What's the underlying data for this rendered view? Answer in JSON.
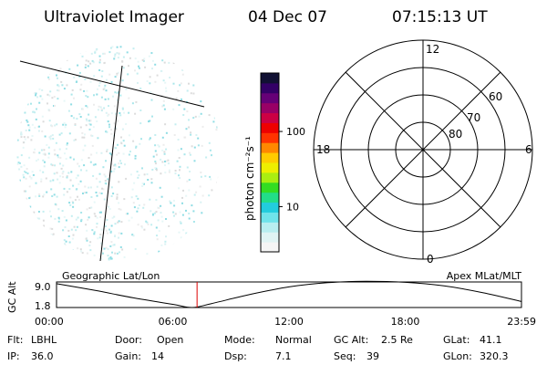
{
  "header": {
    "instrument": "Ultraviolet Imager",
    "date": "04 Dec 07",
    "time": "07:15:13 UT"
  },
  "colorbar": {
    "label": "photon cm⁻²s⁻¹",
    "ticks": [
      {
        "value": 10,
        "label": "10"
      },
      {
        "value": 100,
        "label": "100"
      }
    ],
    "scale": "log",
    "range": [
      2.5,
      600
    ],
    "colors": [
      "#f5f5f5",
      "#e0f4f4",
      "#b8eef0",
      "#6fe3ea",
      "#22ccdd",
      "#22dd88",
      "#33dd22",
      "#aaee11",
      "#eeee00",
      "#ffcc00",
      "#ff8800",
      "#ff3300",
      "#ee0000",
      "#cc0044",
      "#990066",
      "#660077",
      "#330066",
      "#111133"
    ]
  },
  "polar_grid": {
    "mlt_labels": {
      "top": "12",
      "bottom": "0",
      "left": "18",
      "right": "6"
    },
    "lat_labels": [
      "60",
      "70",
      "80"
    ]
  },
  "chart_data": {
    "type": "line",
    "title": "",
    "left_title": "Geographic Lat/Lon",
    "right_title": "Apex MLat/MLT",
    "ylabel": "GC Alt",
    "yticks": [
      "9.0",
      "1.8"
    ],
    "ylim": [
      1.8,
      9.0
    ],
    "xticks": [
      "00:00",
      "06:00",
      "12:00",
      "18:00",
      "23:59"
    ],
    "xlim": [
      0,
      24
    ],
    "marker_time": 7.254,
    "x": [
      0,
      2,
      4,
      6,
      7,
      8,
      10,
      12,
      14,
      16,
      18,
      20,
      22,
      24
    ],
    "y": [
      8.5,
      6.6,
      4.5,
      2.7,
      1.8,
      2.9,
      5.5,
      7.6,
      8.8,
      9.2,
      8.9,
      7.9,
      6.0,
      3.5
    ]
  },
  "footer": {
    "rows": [
      [
        {
          "label": "Flt:",
          "value": "LBHL"
        },
        {
          "label": "Door:",
          "value": "Open"
        },
        {
          "label": "Mode:",
          "value": "Normal"
        },
        {
          "label": "GC Alt:",
          "value": "2.5 Re"
        },
        {
          "label": "GLat:",
          "value": "41.1"
        }
      ],
      [
        {
          "label": "IP:",
          "value": "36.0"
        },
        {
          "label": "Gain:",
          "value": "14"
        },
        {
          "label": "Dsp:",
          "value": "7.1"
        },
        {
          "label": "Seq:",
          "value": "39"
        },
        {
          "label": "GLon:",
          "value": "320.3"
        }
      ]
    ]
  }
}
